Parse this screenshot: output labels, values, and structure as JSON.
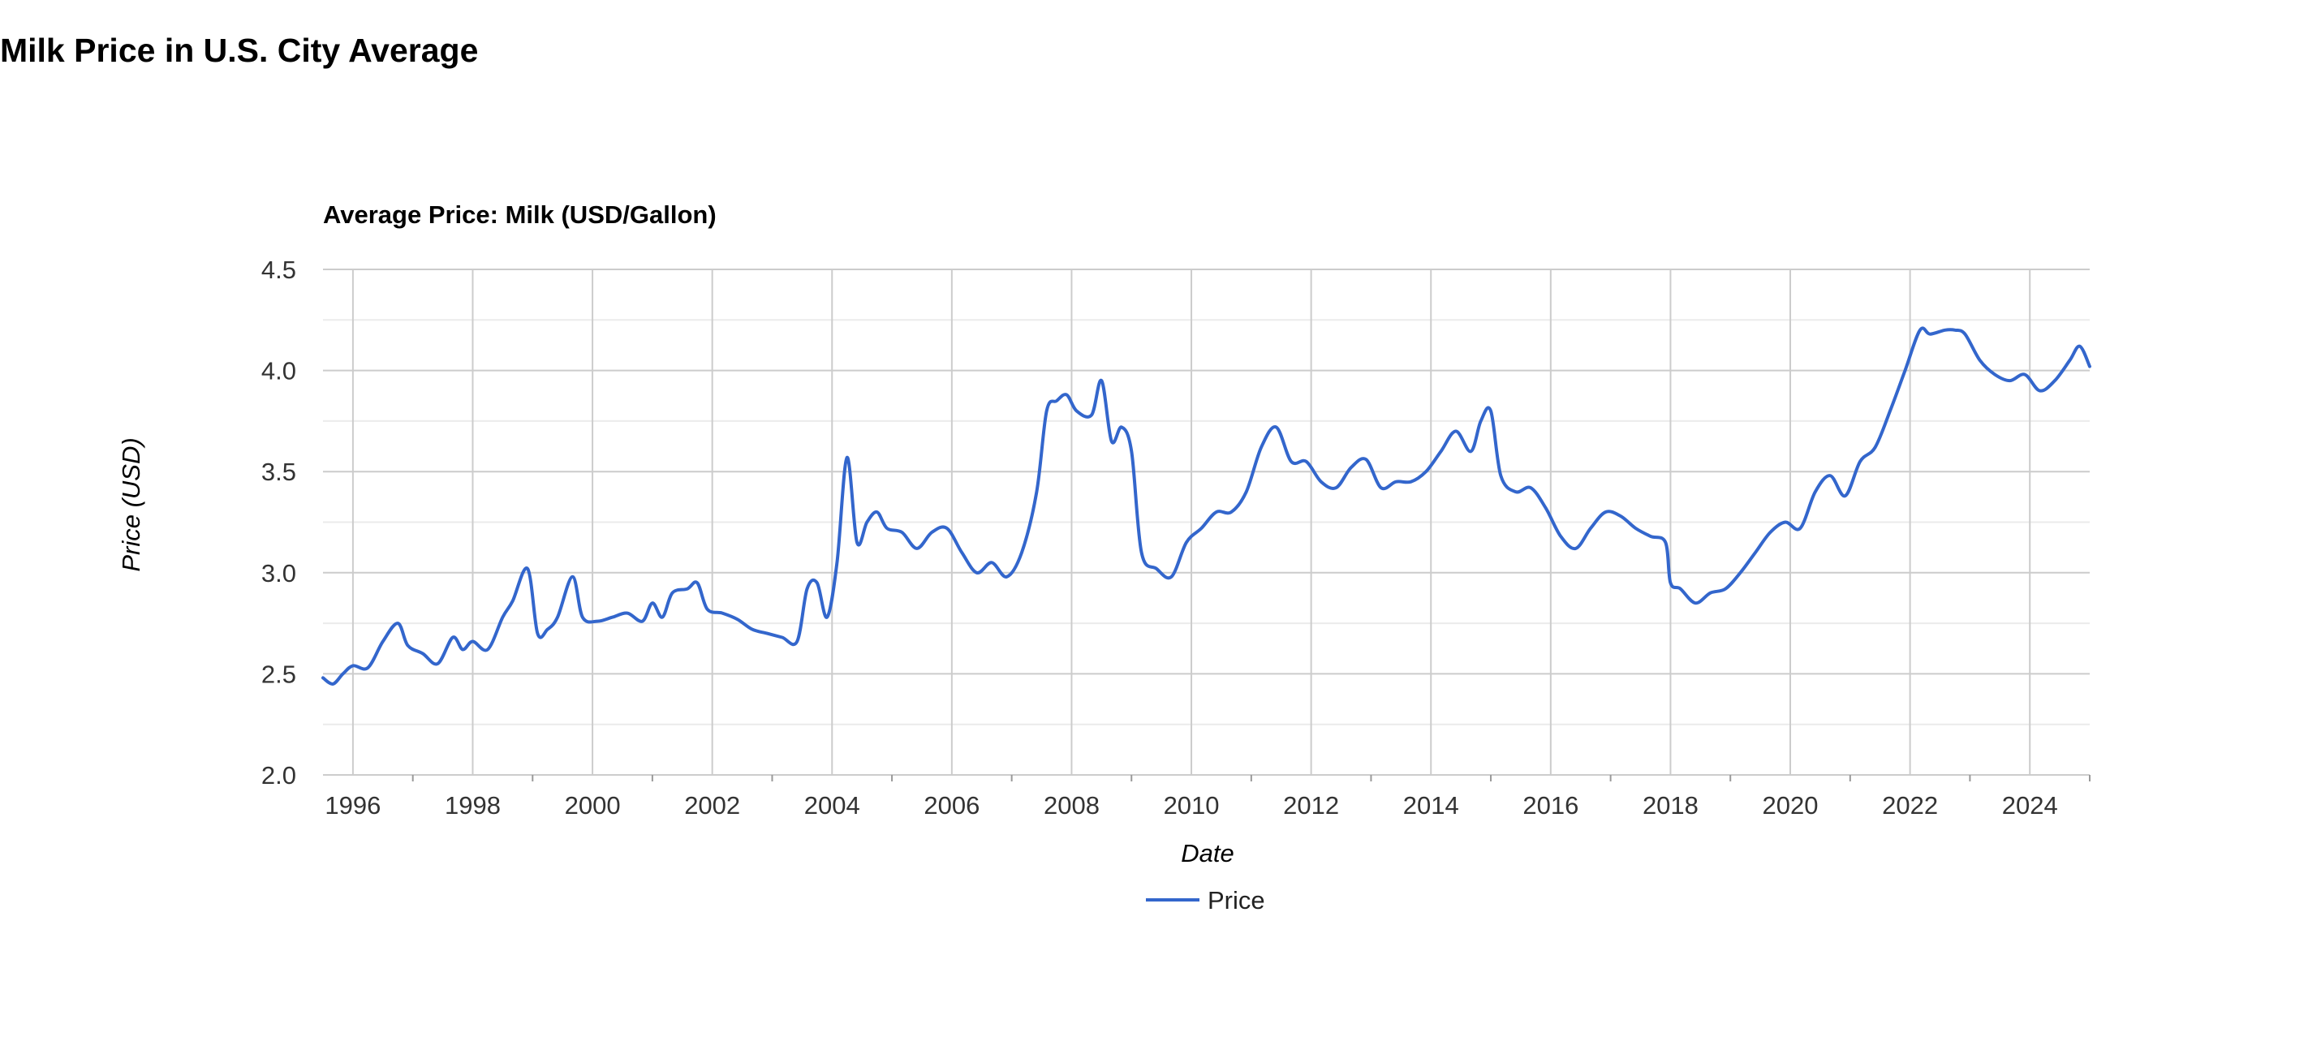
{
  "page": {
    "title": "Milk Price in U.S. City Average"
  },
  "chart_data": {
    "type": "line",
    "title": "Average Price: Milk (USD/Gallon)",
    "xlabel": "Date",
    "ylabel": "Price (USD)",
    "ylim": [
      2.0,
      4.5
    ],
    "yticks": [
      "2.0",
      "2.5",
      "3.0",
      "3.5",
      "4.0",
      "4.5"
    ],
    "xticks": [
      "1996",
      "1998",
      "2000",
      "2002",
      "2004",
      "2006",
      "2008",
      "2010",
      "2012",
      "2014",
      "2016",
      "2018",
      "2020",
      "2022",
      "2024"
    ],
    "xlim": [
      "1995-07",
      "2025-01"
    ],
    "grid": true,
    "legend": "bottom",
    "color": "#3366cc",
    "series": [
      {
        "name": "Price",
        "x": [
          "1995-07",
          "1995-09",
          "1995-11",
          "1996-01",
          "1996-04",
          "1996-07",
          "1996-10",
          "1996-12",
          "1997-03",
          "1997-06",
          "1997-09",
          "1997-11",
          "1998-01",
          "1998-04",
          "1998-07",
          "1998-09",
          "1998-12",
          "1999-02",
          "1999-04",
          "1999-06",
          "1999-09",
          "1999-11",
          "2000-02",
          "2000-05",
          "2000-08",
          "2000-11",
          "2001-01",
          "2001-03",
          "2001-05",
          "2001-08",
          "2001-10",
          "2001-12",
          "2002-03",
          "2002-06",
          "2002-09",
          "2002-12",
          "2003-03",
          "2003-06",
          "2003-08",
          "2003-10",
          "2003-12",
          "2004-02",
          "2004-04",
          "2004-06",
          "2004-08",
          "2004-10",
          "2004-12",
          "2005-03",
          "2005-06",
          "2005-09",
          "2005-12",
          "2006-03",
          "2006-06",
          "2006-09",
          "2006-12",
          "2007-03",
          "2007-06",
          "2007-08",
          "2007-10",
          "2007-12",
          "2008-02",
          "2008-05",
          "2008-07",
          "2008-09",
          "2008-11",
          "2009-01",
          "2009-03",
          "2009-06",
          "2009-09",
          "2009-12",
          "2010-03",
          "2010-06",
          "2010-09",
          "2010-12",
          "2011-03",
          "2011-06",
          "2011-09",
          "2011-12",
          "2012-03",
          "2012-06",
          "2012-09",
          "2012-12",
          "2013-03",
          "2013-06",
          "2013-09",
          "2013-12",
          "2014-03",
          "2014-06",
          "2014-09",
          "2014-11",
          "2015-01",
          "2015-03",
          "2015-06",
          "2015-09",
          "2015-12",
          "2016-03",
          "2016-06",
          "2016-09",
          "2016-12",
          "2017-03",
          "2017-06",
          "2017-09",
          "2017-12",
          "2018-01",
          "2018-03",
          "2018-06",
          "2018-09",
          "2018-12",
          "2019-03",
          "2019-06",
          "2019-09",
          "2019-12",
          "2020-03",
          "2020-06",
          "2020-09",
          "2020-12",
          "2021-03",
          "2021-06",
          "2021-09",
          "2021-12",
          "2022-03",
          "2022-05",
          "2022-08",
          "2022-10",
          "2022-12",
          "2023-03",
          "2023-06",
          "2023-09",
          "2023-12",
          "2024-03",
          "2024-06",
          "2024-09",
          "2024-11",
          "2025-01"
        ],
        "values": [
          2.48,
          2.45,
          2.5,
          2.54,
          2.53,
          2.66,
          2.75,
          2.64,
          2.6,
          2.55,
          2.68,
          2.62,
          2.66,
          2.62,
          2.78,
          2.86,
          3.02,
          2.7,
          2.72,
          2.78,
          2.98,
          2.78,
          2.76,
          2.78,
          2.8,
          2.76,
          2.85,
          2.78,
          2.9,
          2.92,
          2.95,
          2.82,
          2.8,
          2.77,
          2.72,
          2.7,
          2.68,
          2.66,
          2.92,
          2.95,
          2.78,
          3.05,
          3.57,
          3.15,
          3.25,
          3.3,
          3.22,
          3.2,
          3.12,
          3.2,
          3.22,
          3.1,
          3.0,
          3.05,
          2.98,
          3.1,
          3.4,
          3.8,
          3.85,
          3.88,
          3.8,
          3.78,
          3.95,
          3.65,
          3.72,
          3.6,
          3.1,
          3.02,
          2.98,
          3.15,
          3.22,
          3.3,
          3.3,
          3.4,
          3.62,
          3.72,
          3.55,
          3.55,
          3.45,
          3.42,
          3.52,
          3.56,
          3.42,
          3.45,
          3.45,
          3.5,
          3.6,
          3.7,
          3.6,
          3.75,
          3.8,
          3.48,
          3.4,
          3.42,
          3.32,
          3.18,
          3.12,
          3.22,
          3.3,
          3.28,
          3.22,
          3.18,
          3.15,
          2.95,
          2.92,
          2.85,
          2.9,
          2.92,
          3.0,
          3.1,
          3.2,
          3.25,
          3.22,
          3.4,
          3.48,
          3.38,
          3.55,
          3.62,
          3.8,
          4.0,
          4.2,
          4.18,
          4.2,
          4.2,
          4.18,
          4.05,
          3.98,
          3.95,
          3.98,
          3.9,
          3.95,
          4.05,
          4.12,
          4.02
        ]
      }
    ]
  }
}
